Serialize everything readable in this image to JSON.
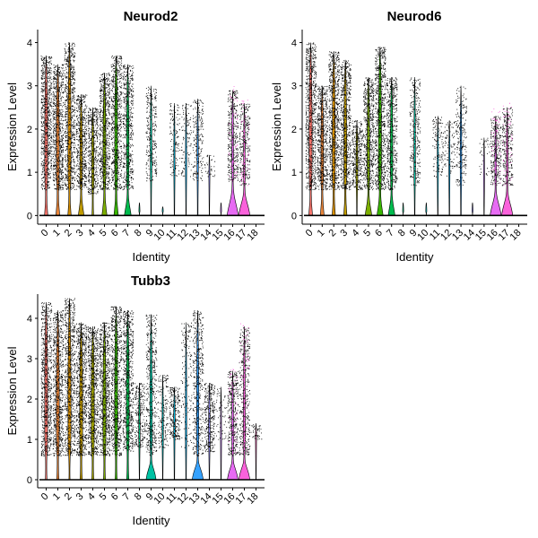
{
  "figure": {
    "categories": [
      "0",
      "1",
      "2",
      "3",
      "4",
      "5",
      "6",
      "7",
      "8",
      "9",
      "10",
      "11",
      "12",
      "13",
      "14",
      "15",
      "16",
      "17",
      "18"
    ],
    "colors": [
      "#F8766D",
      "#E8853A",
      "#D89000",
      "#C09B00",
      "#A3A500",
      "#7CAE00",
      "#39B600",
      "#00BB4E",
      "#00BF7D",
      "#00C1A3",
      "#00BFC4",
      "#00BAE0",
      "#00B0F6",
      "#35A2FF",
      "#9590FF",
      "#C77CFF",
      "#E76BF3",
      "#FA62DB",
      "#FF62BC"
    ]
  },
  "chart_data": [
    {
      "type": "violin",
      "title": "Neurod2",
      "xlabel": "Identity",
      "ylabel": "Expression Level",
      "ylim": [
        -0.2,
        4.3
      ],
      "yticks": [
        0,
        1,
        2,
        3,
        4
      ],
      "series": [
        {
          "category": "0",
          "max": 3.7,
          "spread": 3.2,
          "lower": 0.6,
          "density": 1.0,
          "zero_mass": 0.3
        },
        {
          "category": "1",
          "max": 3.5,
          "spread": 3.0,
          "lower": 0.6,
          "density": 1.0,
          "zero_mass": 0.35
        },
        {
          "category": "2",
          "max": 4.0,
          "spread": 3.6,
          "lower": 0.6,
          "density": 1.0,
          "zero_mass": 0.3
        },
        {
          "category": "3",
          "max": 2.8,
          "spread": 2.3,
          "lower": 0.6,
          "density": 0.7,
          "zero_mass": 0.5
        },
        {
          "category": "4",
          "max": 2.5,
          "spread": 1.8,
          "lower": 0.5,
          "density": 0.6,
          "zero_mass": 0.15
        },
        {
          "category": "5",
          "max": 3.3,
          "spread": 2.8,
          "lower": 0.6,
          "density": 0.9,
          "zero_mass": 0.45
        },
        {
          "category": "6",
          "max": 3.7,
          "spread": 3.3,
          "lower": 0.6,
          "density": 0.9,
          "zero_mass": 0.4
        },
        {
          "category": "7",
          "max": 3.5,
          "spread": 3.0,
          "lower": 0.6,
          "density": 0.7,
          "zero_mass": 0.6
        },
        {
          "category": "8",
          "max": 0.3,
          "spread": 0.1,
          "lower": 0.1,
          "density": 0.0,
          "zero_mass": 0.02
        },
        {
          "category": "9",
          "max": 3.0,
          "spread": 2.3,
          "lower": 0.8,
          "density": 0.35,
          "zero_mass": 0.05
        },
        {
          "category": "10",
          "max": 0.2,
          "spread": 0.1,
          "lower": 0.1,
          "density": 0.0,
          "zero_mass": 0.02
        },
        {
          "category": "11",
          "max": 2.6,
          "spread": 1.9,
          "lower": 0.9,
          "density": 0.15,
          "zero_mass": 0.04
        },
        {
          "category": "12",
          "max": 2.6,
          "spread": 1.8,
          "lower": 0.9,
          "density": 0.12,
          "zero_mass": 0.04
        },
        {
          "category": "13",
          "max": 2.7,
          "spread": 2.0,
          "lower": 0.8,
          "density": 0.25,
          "zero_mass": 0.06
        },
        {
          "category": "14",
          "max": 1.4,
          "spread": 1.2,
          "lower": 0.9,
          "density": 0.02,
          "zero_mass": 0.03
        },
        {
          "category": "15",
          "max": 0.3,
          "spread": 0.1,
          "lower": 0.1,
          "density": 0.0,
          "zero_mass": 0.02
        },
        {
          "category": "16",
          "max": 2.9,
          "spread": 2.2,
          "lower": 0.8,
          "density": 0.45,
          "zero_mass": 1.0
        },
        {
          "category": "17",
          "max": 2.6,
          "spread": 2.0,
          "lower": 0.7,
          "density": 0.35,
          "zero_mass": 1.0
        },
        {
          "category": "18",
          "max": 0.0,
          "spread": 0.0,
          "lower": 0.0,
          "density": 0.0,
          "zero_mass": 0.0
        }
      ]
    },
    {
      "type": "violin",
      "title": "Neurod6",
      "xlabel": "Identity",
      "ylabel": "Expression Level",
      "ylim": [
        -0.2,
        4.3
      ],
      "yticks": [
        0,
        1,
        2,
        3,
        4
      ],
      "series": [
        {
          "category": "0",
          "max": 4.0,
          "spread": 3.6,
          "lower": 0.6,
          "density": 1.0,
          "zero_mass": 0.35
        },
        {
          "category": "1",
          "max": 3.0,
          "spread": 2.5,
          "lower": 0.6,
          "density": 0.8,
          "zero_mass": 0.35
        },
        {
          "category": "2",
          "max": 3.8,
          "spread": 3.3,
          "lower": 0.6,
          "density": 1.0,
          "zero_mass": 0.3
        },
        {
          "category": "3",
          "max": 3.6,
          "spread": 3.1,
          "lower": 0.6,
          "density": 0.9,
          "zero_mass": 0.3
        },
        {
          "category": "4",
          "max": 2.2,
          "spread": 1.7,
          "lower": 0.6,
          "density": 0.5,
          "zero_mass": 0.05
        },
        {
          "category": "5",
          "max": 3.2,
          "spread": 2.6,
          "lower": 0.6,
          "density": 0.8,
          "zero_mass": 0.6
        },
        {
          "category": "6",
          "max": 3.9,
          "spread": 3.4,
          "lower": 0.6,
          "density": 1.0,
          "zero_mass": 0.55
        },
        {
          "category": "7",
          "max": 3.2,
          "spread": 2.6,
          "lower": 0.6,
          "density": 0.7,
          "zero_mass": 0.6
        },
        {
          "category": "8",
          "max": 0.3,
          "spread": 0.1,
          "lower": 0.1,
          "density": 0.0,
          "zero_mass": 0.02
        },
        {
          "category": "9",
          "max": 3.2,
          "spread": 2.3,
          "lower": 0.7,
          "density": 0.35,
          "zero_mass": 0.05
        },
        {
          "category": "10",
          "max": 0.3,
          "spread": 0.1,
          "lower": 0.1,
          "density": 0.0,
          "zero_mass": 0.02
        },
        {
          "category": "11",
          "max": 2.3,
          "spread": 1.6,
          "lower": 0.9,
          "density": 0.15,
          "zero_mass": 0.04
        },
        {
          "category": "12",
          "max": 2.2,
          "spread": 1.5,
          "lower": 0.9,
          "density": 0.1,
          "zero_mass": 0.04
        },
        {
          "category": "13",
          "max": 3.0,
          "spread": 2.3,
          "lower": 0.7,
          "density": 0.3,
          "zero_mass": 0.06
        },
        {
          "category": "14",
          "max": 0.3,
          "spread": 0.1,
          "lower": 0.1,
          "density": 0.0,
          "zero_mass": 0.02
        },
        {
          "category": "15",
          "max": 1.8,
          "spread": 1.5,
          "lower": 0.9,
          "density": 0.02,
          "zero_mass": 0.03
        },
        {
          "category": "16",
          "max": 2.3,
          "spread": 1.8,
          "lower": 0.7,
          "density": 0.35,
          "zero_mass": 1.0
        },
        {
          "category": "17",
          "max": 2.5,
          "spread": 2.0,
          "lower": 0.7,
          "density": 0.35,
          "zero_mass": 1.0
        },
        {
          "category": "18",
          "max": 0.0,
          "spread": 0.0,
          "lower": 0.0,
          "density": 0.0,
          "zero_mass": 0.0
        }
      ]
    },
    {
      "type": "violin",
      "title": "Tubb3",
      "xlabel": "Identity",
      "ylabel": "Expression Level",
      "ylim": [
        -0.2,
        4.6
      ],
      "yticks": [
        0,
        1,
        2,
        3,
        4
      ],
      "series": [
        {
          "category": "0",
          "max": 4.4,
          "spread": 4.0,
          "lower": 0.6,
          "density": 1.0,
          "zero_mass": 0.15
        },
        {
          "category": "1",
          "max": 4.2,
          "spread": 3.8,
          "lower": 0.6,
          "density": 1.0,
          "zero_mass": 0.2
        },
        {
          "category": "2",
          "max": 4.5,
          "spread": 4.1,
          "lower": 0.6,
          "density": 1.0,
          "zero_mass": 0.1
        },
        {
          "category": "3",
          "max": 3.9,
          "spread": 3.5,
          "lower": 0.6,
          "density": 1.0,
          "zero_mass": 0.2
        },
        {
          "category": "4",
          "max": 3.8,
          "spread": 3.4,
          "lower": 0.6,
          "density": 1.0,
          "zero_mass": 0.18
        },
        {
          "category": "5",
          "max": 3.9,
          "spread": 3.5,
          "lower": 0.6,
          "density": 1.0,
          "zero_mass": 0.18
        },
        {
          "category": "6",
          "max": 4.3,
          "spread": 3.9,
          "lower": 0.6,
          "density": 1.0,
          "zero_mass": 0.18
        },
        {
          "category": "7",
          "max": 4.2,
          "spread": 3.7,
          "lower": 0.7,
          "density": 0.9,
          "zero_mass": 0.2
        },
        {
          "category": "8",
          "max": 2.4,
          "spread": 1.6,
          "lower": 0.8,
          "density": 0.3,
          "zero_mass": 0.03
        },
        {
          "category": "9",
          "max": 4.1,
          "spread": 3.2,
          "lower": 0.6,
          "density": 0.6,
          "zero_mass": 0.9
        },
        {
          "category": "10",
          "max": 2.6,
          "spread": 2.0,
          "lower": 0.8,
          "density": 0.2,
          "zero_mass": 0.04
        },
        {
          "category": "11",
          "max": 2.3,
          "spread": 1.5,
          "lower": 1.0,
          "density": 0.3,
          "zero_mass": 0.04
        },
        {
          "category": "12",
          "max": 3.9,
          "spread": 3.0,
          "lower": 0.8,
          "density": 0.2,
          "zero_mass": 0.06
        },
        {
          "category": "13",
          "max": 4.2,
          "spread": 3.3,
          "lower": 0.6,
          "density": 0.6,
          "zero_mass": 1.0
        },
        {
          "category": "14",
          "max": 2.4,
          "spread": 1.7,
          "lower": 0.7,
          "density": 0.4,
          "zero_mass": 0.04
        },
        {
          "category": "15",
          "max": 2.3,
          "spread": 2.0,
          "lower": 1.0,
          "density": 0.05,
          "zero_mass": 0.04
        },
        {
          "category": "16",
          "max": 2.7,
          "spread": 2.2,
          "lower": 0.6,
          "density": 0.45,
          "zero_mass": 0.95
        },
        {
          "category": "17",
          "max": 3.8,
          "spread": 3.3,
          "lower": 0.6,
          "density": 0.5,
          "zero_mass": 1.0
        },
        {
          "category": "18",
          "max": 1.4,
          "spread": 1.3,
          "lower": 1.0,
          "density": 0.03,
          "zero_mass": 0.03
        }
      ]
    }
  ]
}
